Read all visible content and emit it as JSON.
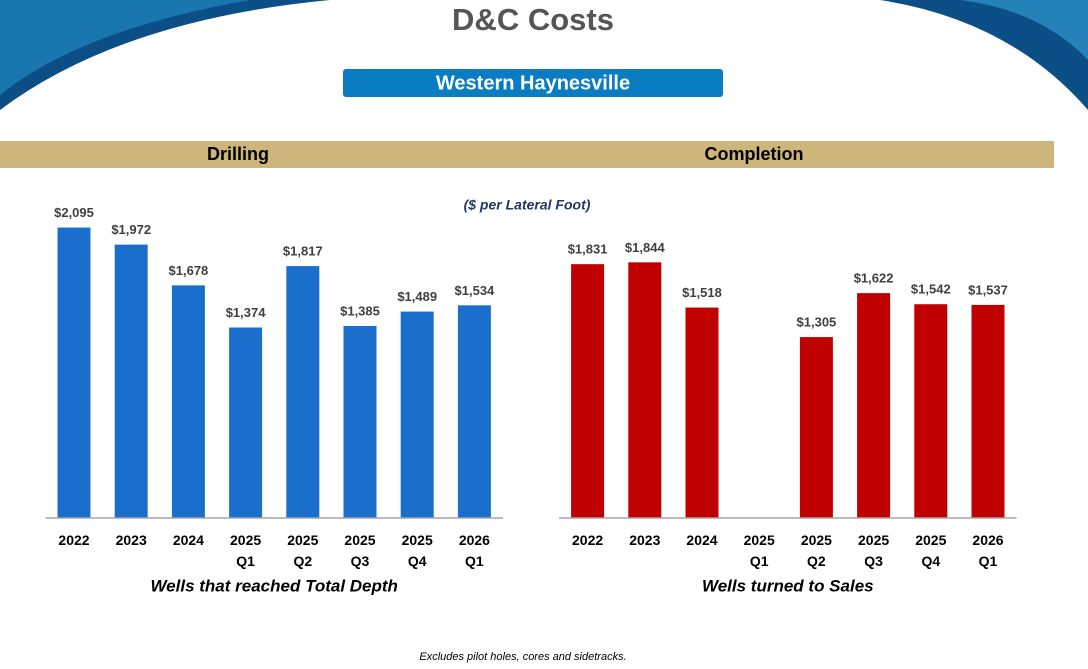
{
  "header": {
    "title": "D&C Costs",
    "subtitle": "Western Haynesville"
  },
  "unit_note": "($ per Lateral Foot)",
  "footnote": "Excludes pilot holes, cores and sidetracks.",
  "chart_data": [
    {
      "type": "bar",
      "title": "Drilling",
      "x_label": "Wells that reached Total Depth",
      "color": "#1a6fcc",
      "categories": [
        "2022",
        "2023",
        "2024",
        "2025 Q1",
        "2025 Q2",
        "2025 Q3",
        "2025 Q4",
        "2026 Q1"
      ],
      "values": [
        2095,
        1972,
        1678,
        1374,
        1817,
        1385,
        1489,
        1534
      ],
      "value_labels": [
        "$2,095",
        "$1,972",
        "$1,678",
        "$1,374",
        "$1,817",
        "$1,385",
        "$1,489",
        "$1,534"
      ],
      "ylim": [
        0,
        2200
      ]
    },
    {
      "type": "bar",
      "title": "Completion",
      "x_label": "Wells turned to Sales",
      "color": "#c00000",
      "categories": [
        "2022",
        "2023",
        "2024",
        "2025 Q1",
        "2025 Q2",
        "2025 Q3",
        "2025 Q4",
        "2026 Q1"
      ],
      "values": [
        1831,
        1844,
        1518,
        null,
        1305,
        1622,
        1542,
        1537
      ],
      "value_labels": [
        "$1,831",
        "$1,844",
        "$1,518",
        null,
        "$1,305",
        "$1,622",
        "$1,542",
        "$1,537"
      ],
      "ylim": [
        0,
        2200
      ]
    }
  ]
}
